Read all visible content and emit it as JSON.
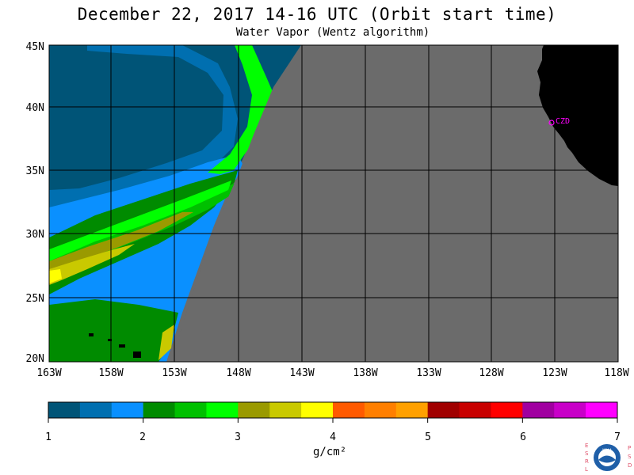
{
  "header": {
    "title": "December 22, 2017  14-16 UTC  (Orbit start time)",
    "subtitle": "Water Vapor (Wentz algorithm)"
  },
  "map": {
    "lat_labels": [
      "45N",
      "40N",
      "35N",
      "30N",
      "25N",
      "20N"
    ],
    "lon_labels": [
      "163W",
      "158W",
      "153W",
      "148W",
      "143W",
      "138W",
      "133W",
      "128W",
      "123W",
      "118W"
    ],
    "station_label": "CZD",
    "colors": {
      "no_data": "#6b6b6b",
      "land": "#000000",
      "station": "#ff00ff"
    }
  },
  "colorbar": {
    "tick_labels": [
      "1",
      "2",
      "3",
      "4",
      "5",
      "6",
      "7"
    ],
    "units": "g/cm²",
    "colors": [
      "#005477",
      "#006fb0",
      "#0a90ff",
      "#008b00",
      "#00c000",
      "#00ff00",
      "#9a9a00",
      "#c9c900",
      "#ffff00",
      "#ff5a00",
      "#ff7f00",
      "#ffa000",
      "#a00000",
      "#c80000",
      "#ff0000",
      "#a000a0",
      "#c800c8",
      "#ff00ff"
    ]
  },
  "logo": {
    "left_letters": "ESRL",
    "right_letters": "PSD",
    "center_text": "NOAA"
  }
}
